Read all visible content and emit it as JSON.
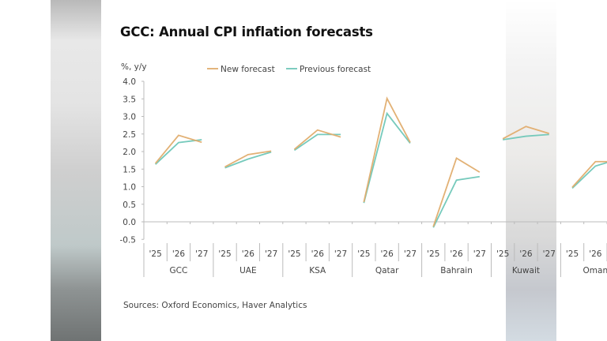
{
  "title": "GCC: Annual CPI inflation forecasts",
  "source": "Sources: Oxford Economics, Haver Analytics",
  "colors": {
    "new_forecast": "#e0ad6e",
    "previous_forecast": "#6fc7b8",
    "axis": "#bbbbbb",
    "text": "#444444"
  },
  "chart_data": {
    "type": "line",
    "title": "GCC: Annual CPI inflation forecasts",
    "ylabel": "%, y/y",
    "xlabel": "",
    "ylim": [
      -0.5,
      4.0
    ],
    "yticks": [
      "4.0",
      "3.5",
      "3.0",
      "2.5",
      "2.0",
      "1.5",
      "1.0",
      "0.5",
      "0.0",
      "-0.5"
    ],
    "ytick_values": [
      4.0,
      3.5,
      3.0,
      2.5,
      2.0,
      1.5,
      1.0,
      0.5,
      0.0,
      -0.5
    ],
    "grid": false,
    "legend_position": "top-center",
    "groups": [
      "GCC",
      "UAE",
      "KSA",
      "Qatar",
      "Bahrain",
      "Kuwait",
      "Oman"
    ],
    "years": [
      "'25",
      "'26",
      "'27"
    ],
    "series": [
      {
        "name": "New forecast",
        "values": [
          [
            1.65,
            2.45,
            2.25
          ],
          [
            1.55,
            1.9,
            2.0
          ],
          [
            2.05,
            2.6,
            2.4
          ],
          [
            0.55,
            3.5,
            2.25
          ],
          [
            -0.15,
            1.8,
            1.4
          ],
          [
            2.35,
            2.7,
            2.5
          ],
          [
            0.97,
            1.7,
            1.7
          ]
        ]
      },
      {
        "name": "Previous forecast",
        "values": [
          [
            1.65,
            2.27,
            2.35
          ],
          [
            1.55,
            1.8,
            2.0
          ],
          [
            2.05,
            2.5,
            2.5
          ],
          [
            0.55,
            3.1,
            2.25
          ],
          [
            -0.15,
            1.2,
            1.3
          ],
          [
            2.35,
            2.45,
            2.5
          ],
          [
            0.97,
            1.6,
            1.8
          ]
        ]
      }
    ]
  }
}
